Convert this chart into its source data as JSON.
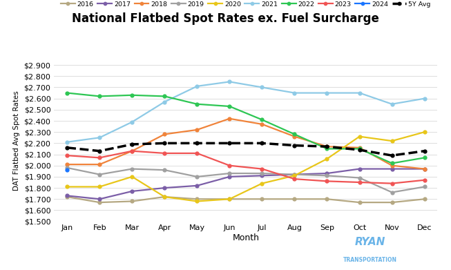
{
  "title": "National Flatbed Spot Rates ex. Fuel Surcharge",
  "xlabel": "Month",
  "ylabel": "DAT Flatbed Avg Spot Rates",
  "months": [
    "Jan",
    "Feb",
    "Mar",
    "Apr",
    "May",
    "Jun",
    "Jul",
    "Aug",
    "Sep",
    "Oct",
    "Nov",
    "Dec"
  ],
  "ylim": [
    1.5,
    2.95
  ],
  "yticks": [
    1.5,
    1.6,
    1.7,
    1.8,
    1.9,
    2.0,
    2.1,
    2.2,
    2.3,
    2.4,
    2.5,
    2.6,
    2.7,
    2.8,
    2.9
  ],
  "series": {
    "2016": {
      "color": "#b5a882",
      "data": [
        1.72,
        1.67,
        1.68,
        1.72,
        1.7,
        1.7,
        1.7,
        1.7,
        1.7,
        1.67,
        1.67,
        1.7
      ]
    },
    "2017": {
      "color": "#7b5ea7",
      "data": [
        1.73,
        1.7,
        1.77,
        1.8,
        1.82,
        1.9,
        1.91,
        1.92,
        1.93,
        1.97,
        1.97,
        1.97
      ]
    },
    "2018": {
      "color": "#f0833a",
      "data": [
        2.01,
        2.01,
        2.13,
        2.28,
        2.32,
        2.42,
        2.37,
        2.26,
        2.17,
        2.16,
        2.0,
        1.97
      ]
    },
    "2019": {
      "color": "#a0a0a0",
      "data": [
        1.98,
        1.92,
        1.97,
        1.96,
        1.9,
        1.93,
        1.93,
        1.92,
        1.91,
        1.89,
        1.76,
        1.81
      ]
    },
    "2020": {
      "color": "#e8c619",
      "data": [
        1.81,
        1.81,
        1.9,
        1.72,
        1.68,
        1.7,
        1.84,
        1.91,
        2.06,
        2.26,
        2.22,
        2.3
      ]
    },
    "2021": {
      "color": "#8ecae6",
      "data": [
        2.21,
        2.25,
        2.39,
        2.57,
        2.71,
        2.75,
        2.7,
        2.65,
        2.65,
        2.65,
        2.55,
        2.6
      ]
    },
    "2022": {
      "color": "#2dc653",
      "data": [
        2.65,
        2.62,
        2.63,
        2.62,
        2.55,
        2.53,
        2.41,
        2.28,
        2.15,
        2.15,
        2.02,
        2.07
      ]
    },
    "2023": {
      "color": "#f05454",
      "data": [
        2.09,
        2.07,
        2.13,
        2.11,
        2.11,
        2.0,
        1.97,
        1.88,
        1.86,
        1.85,
        1.84,
        1.87
      ]
    },
    "2024": {
      "color": "#1a75ff",
      "data": [
        1.96,
        null,
        null,
        null,
        null,
        null,
        null,
        null,
        null,
        null,
        null,
        null
      ]
    },
    "5Y Avg": {
      "color": "#000000",
      "data": [
        2.16,
        2.13,
        2.19,
        2.2,
        2.2,
        2.2,
        2.2,
        2.18,
        2.17,
        2.14,
        2.09,
        2.13
      ],
      "dashed": true
    }
  },
  "legend_order": [
    "2016",
    "2017",
    "2018",
    "2019",
    "2020",
    "2021",
    "2022",
    "2023",
    "2024",
    "5Y Avg"
  ],
  "background_color": "#ffffff",
  "grid_color": "#dddddd",
  "dat_color": "#6ab4e8",
  "ryan_color": "#6ab4e8",
  "title_fontsize": 12,
  "axis_fontsize": 8,
  "legend_fontsize": 6.8
}
